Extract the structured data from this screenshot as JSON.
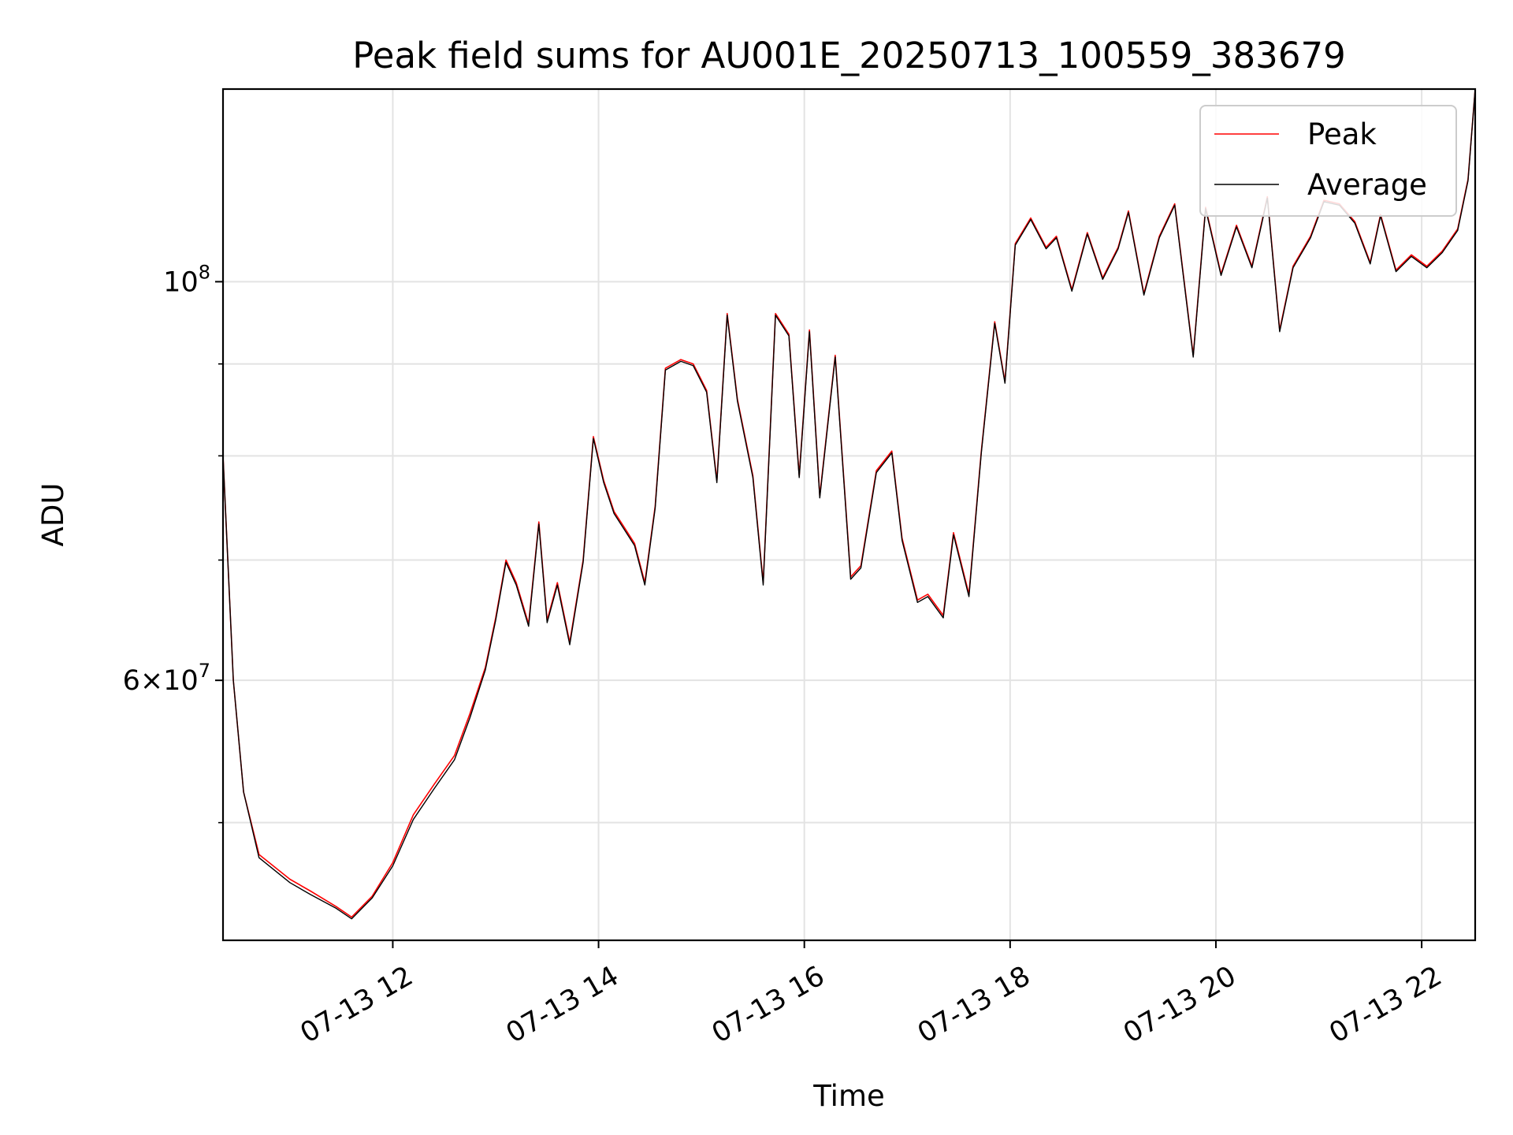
{
  "chart_data": {
    "type": "line",
    "title": "Peak field sums for AU001E_20250713_100559_383679",
    "xlabel": "Time",
    "ylabel": "ADU",
    "x_ticks": [
      "07-13 12",
      "07-13 14",
      "07-13 16",
      "07-13 18",
      "07-13 20",
      "07-13 22"
    ],
    "x_tick_hours": [
      12,
      14,
      16,
      18,
      20,
      22
    ],
    "xlim_hours": [
      10.35,
      22.52
    ],
    "y_scale": "log",
    "ylim": [
      43000000,
      128000000
    ],
    "y_ticks": [
      {
        "base": "10",
        "exp": "8",
        "value": 100000000
      },
      {
        "mant": "6",
        "times": "×",
        "base": "10",
        "exp": "7",
        "value": 60000000
      }
    ],
    "y_minor_ticks": [
      50000000,
      70000000,
      80000000,
      90000000
    ],
    "grid": true,
    "legend": {
      "position": "upper right",
      "entries": [
        "Peak",
        "Average"
      ]
    },
    "series": [
      {
        "name": "Peak",
        "color": "#ff0000",
        "points": [
          [
            10.35,
            80000000
          ],
          [
            10.45,
            60000000
          ],
          [
            10.55,
            52000000
          ],
          [
            10.7,
            48000000
          ],
          [
            11.0,
            46500000
          ],
          [
            11.2,
            45800000
          ],
          [
            11.45,
            44900000
          ],
          [
            11.6,
            44300000
          ],
          [
            11.8,
            45500000
          ],
          [
            12.0,
            47500000
          ],
          [
            12.2,
            50500000
          ],
          [
            12.4,
            52500000
          ],
          [
            12.6,
            54500000
          ],
          [
            12.75,
            57500000
          ],
          [
            12.9,
            61000000
          ],
          [
            13.0,
            65000000
          ],
          [
            13.1,
            70000000
          ],
          [
            13.2,
            68000000
          ],
          [
            13.32,
            64500000
          ],
          [
            13.42,
            73500000
          ],
          [
            13.5,
            64800000
          ],
          [
            13.6,
            68000000
          ],
          [
            13.72,
            63000000
          ],
          [
            13.85,
            70000000
          ],
          [
            13.95,
            82000000
          ],
          [
            14.05,
            77500000
          ],
          [
            14.15,
            74500000
          ],
          [
            14.25,
            73000000
          ],
          [
            14.35,
            71500000
          ],
          [
            14.45,
            68000000
          ],
          [
            14.55,
            75000000
          ],
          [
            14.65,
            89500000
          ],
          [
            14.8,
            90500000
          ],
          [
            14.92,
            90000000
          ],
          [
            15.05,
            87000000
          ],
          [
            15.15,
            77500000
          ],
          [
            15.25,
            96000000
          ],
          [
            15.35,
            86000000
          ],
          [
            15.5,
            78000000
          ],
          [
            15.6,
            68000000
          ],
          [
            15.72,
            96000000
          ],
          [
            15.85,
            93500000
          ],
          [
            15.95,
            78000000
          ],
          [
            16.05,
            94000000
          ],
          [
            16.15,
            76000000
          ],
          [
            16.3,
            91000000
          ],
          [
            16.45,
            68500000
          ],
          [
            16.55,
            69500000
          ],
          [
            16.7,
            78500000
          ],
          [
            16.85,
            80500000
          ],
          [
            16.95,
            72000000
          ],
          [
            17.1,
            66500000
          ],
          [
            17.2,
            67000000
          ],
          [
            17.35,
            65200000
          ],
          [
            17.45,
            72500000
          ],
          [
            17.6,
            67000000
          ],
          [
            17.72,
            80500000
          ],
          [
            17.85,
            95000000
          ],
          [
            17.95,
            88000000
          ],
          [
            18.05,
            105000000
          ],
          [
            18.2,
            108500000
          ],
          [
            18.35,
            104500000
          ],
          [
            18.45,
            106000000
          ],
          [
            18.6,
            99000000
          ],
          [
            18.75,
            106500000
          ],
          [
            18.9,
            100500000
          ],
          [
            19.05,
            104500000
          ],
          [
            19.15,
            109500000
          ],
          [
            19.3,
            98500000
          ],
          [
            19.45,
            106000000
          ],
          [
            19.6,
            110500000
          ],
          [
            19.78,
            91000000
          ],
          [
            19.9,
            110000000
          ],
          [
            20.05,
            101000000
          ],
          [
            20.2,
            107500000
          ],
          [
            20.35,
            102000000
          ],
          [
            20.5,
            111500000
          ],
          [
            20.62,
            94000000
          ],
          [
            20.75,
            102000000
          ],
          [
            20.92,
            106000000
          ],
          [
            21.05,
            111000000
          ],
          [
            21.2,
            110500000
          ],
          [
            21.35,
            108000000
          ],
          [
            21.5,
            102500000
          ],
          [
            21.6,
            109000000
          ],
          [
            21.75,
            101500000
          ],
          [
            21.9,
            103500000
          ],
          [
            22.05,
            102000000
          ],
          [
            22.2,
            104000000
          ],
          [
            22.35,
            107000000
          ],
          [
            22.45,
            114000000
          ],
          [
            22.52,
            128000000
          ]
        ]
      },
      {
        "name": "Average",
        "color": "#000000",
        "points": [
          [
            10.35,
            80000000
          ],
          [
            10.45,
            60000000
          ],
          [
            10.55,
            52000000
          ],
          [
            10.7,
            47800000
          ],
          [
            11.0,
            46300000
          ],
          [
            11.2,
            45600000
          ],
          [
            11.45,
            44800000
          ],
          [
            11.6,
            44200000
          ],
          [
            11.8,
            45400000
          ],
          [
            12.0,
            47300000
          ],
          [
            12.2,
            50200000
          ],
          [
            12.4,
            52200000
          ],
          [
            12.6,
            54200000
          ],
          [
            12.75,
            57200000
          ],
          [
            12.9,
            60800000
          ],
          [
            13.0,
            64800000
          ],
          [
            13.1,
            69800000
          ],
          [
            13.2,
            67800000
          ],
          [
            13.32,
            64300000
          ],
          [
            13.42,
            73300000
          ],
          [
            13.5,
            64600000
          ],
          [
            13.6,
            67800000
          ],
          [
            13.72,
            62800000
          ],
          [
            13.85,
            69800000
          ],
          [
            13.95,
            81800000
          ],
          [
            14.05,
            77300000
          ],
          [
            14.15,
            74300000
          ],
          [
            14.25,
            72800000
          ],
          [
            14.35,
            71300000
          ],
          [
            14.45,
            67800000
          ],
          [
            14.55,
            74800000
          ],
          [
            14.65,
            89300000
          ],
          [
            14.8,
            90300000
          ],
          [
            14.92,
            89800000
          ],
          [
            15.05,
            86800000
          ],
          [
            15.15,
            77300000
          ],
          [
            15.25,
            95800000
          ],
          [
            15.35,
            85800000
          ],
          [
            15.5,
            77800000
          ],
          [
            15.6,
            67800000
          ],
          [
            15.72,
            95800000
          ],
          [
            15.85,
            93300000
          ],
          [
            15.95,
            77800000
          ],
          [
            16.05,
            93800000
          ],
          [
            16.15,
            75800000
          ],
          [
            16.3,
            90800000
          ],
          [
            16.45,
            68300000
          ],
          [
            16.55,
            69300000
          ],
          [
            16.7,
            78300000
          ],
          [
            16.85,
            80300000
          ],
          [
            16.95,
            71800000
          ],
          [
            17.1,
            66300000
          ],
          [
            17.2,
            66800000
          ],
          [
            17.35,
            65000000
          ],
          [
            17.45,
            72300000
          ],
          [
            17.6,
            66800000
          ],
          [
            17.72,
            80300000
          ],
          [
            17.85,
            94800000
          ],
          [
            17.95,
            87800000
          ],
          [
            18.05,
            104800000
          ],
          [
            18.2,
            108300000
          ],
          [
            18.35,
            104300000
          ],
          [
            18.45,
            105800000
          ],
          [
            18.6,
            98800000
          ],
          [
            18.75,
            106300000
          ],
          [
            18.9,
            100300000
          ],
          [
            19.05,
            104300000
          ],
          [
            19.15,
            109300000
          ],
          [
            19.3,
            98300000
          ],
          [
            19.45,
            105800000
          ],
          [
            19.6,
            110300000
          ],
          [
            19.78,
            90800000
          ],
          [
            19.9,
            109800000
          ],
          [
            20.05,
            100800000
          ],
          [
            20.2,
            107300000
          ],
          [
            20.35,
            101800000
          ],
          [
            20.5,
            111300000
          ],
          [
            20.62,
            93800000
          ],
          [
            20.75,
            101800000
          ],
          [
            20.92,
            105800000
          ],
          [
            21.05,
            110800000
          ],
          [
            21.2,
            110300000
          ],
          [
            21.35,
            107800000
          ],
          [
            21.5,
            102300000
          ],
          [
            21.6,
            108800000
          ],
          [
            21.75,
            101300000
          ],
          [
            21.9,
            103300000
          ],
          [
            22.05,
            101800000
          ],
          [
            22.2,
            103800000
          ],
          [
            22.35,
            106800000
          ],
          [
            22.45,
            113800000
          ],
          [
            22.52,
            128000000
          ]
        ]
      }
    ]
  }
}
